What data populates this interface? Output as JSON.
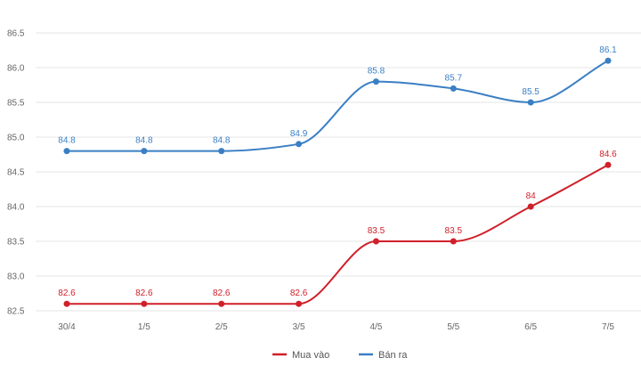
{
  "chart_data": {
    "type": "line",
    "title": "",
    "xlabel": "",
    "ylabel": "",
    "categories": [
      "30/4",
      "1/5",
      "2/5",
      "3/5",
      "4/5",
      "5/5",
      "6/5",
      "7/5"
    ],
    "ylim": [
      82.5,
      86.5
    ],
    "yticks": [
      "82.5",
      "83.0",
      "83.5",
      "84.0",
      "84.5",
      "85.0",
      "85.5",
      "86.0",
      "86.5"
    ],
    "grid": true,
    "legend_position": "bottom",
    "series": [
      {
        "name": "Mua vào",
        "color": "#d0202a",
        "values": [
          82.6,
          82.6,
          82.6,
          82.6,
          83.5,
          83.5,
          84,
          84.6
        ],
        "labels": [
          "82.6",
          "82.6",
          "82.6",
          "82.6",
          "83.5",
          "83.5",
          "84",
          "84.6"
        ]
      },
      {
        "name": "Bán ra",
        "color": "#3a7fc4",
        "values": [
          84.8,
          84.8,
          84.8,
          84.9,
          85.8,
          85.7,
          85.5,
          86.1
        ],
        "labels": [
          "84.8",
          "84.8",
          "84.8",
          "84.9",
          "85.8",
          "85.7",
          "85.5",
          "86.1"
        ]
      }
    ]
  }
}
